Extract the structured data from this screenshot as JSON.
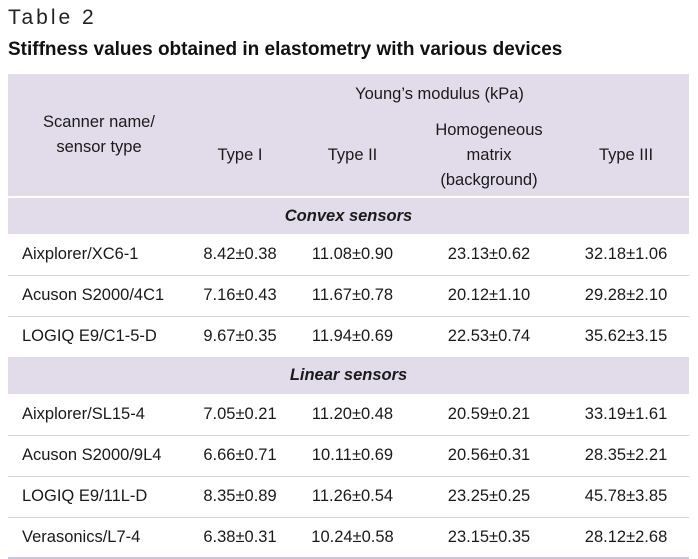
{
  "table_label": "Table 2",
  "caption": "Stiffness values obtained in elastometry with various devices",
  "header": {
    "first_col_line1": "Scanner name/",
    "first_col_line2": "sensor type",
    "group": "Young’s modulus (kPa)",
    "columns": [
      {
        "line1": "Type I"
      },
      {
        "line1": "Type II"
      },
      {
        "line1": "Homogeneous",
        "line2": "matrix",
        "line3": "(background)"
      },
      {
        "line1": "Type III"
      }
    ]
  },
  "groups": [
    {
      "title": "Convex sensors",
      "rows": [
        {
          "name": "Aixplorer/XC6-1",
          "values": [
            "8.42±0.38",
            "11.08±0.90",
            "23.13±0.62",
            "32.18±1.06"
          ]
        },
        {
          "name": "Acuson S2000/4C1",
          "values": [
            "7.16±0.43",
            "11.67±0.78",
            "20.12±1.10",
            "29.28±2.10"
          ]
        },
        {
          "name": "LOGIQ E9/C1-5-D",
          "values": [
            "9.67±0.35",
            "11.94±0.69",
            "22.53±0.74",
            "35.62±3.15"
          ]
        }
      ]
    },
    {
      "title": "Linear sensors",
      "rows": [
        {
          "name": "Aixplorer/SL15-4",
          "values": [
            "7.05±0.21",
            "11.20±0.48",
            "20.59±0.21",
            "33.19±1.61"
          ]
        },
        {
          "name": "Acuson S2000/9L4",
          "values": [
            "6.66±0.71",
            "10.11±0.69",
            "20.56±0.31",
            "28.35±2.21"
          ]
        },
        {
          "name": "LOGIQ E9/11L-D",
          "values": [
            "8.35±0.89",
            "11.26±0.54",
            "23.25±0.25",
            "45.78±3.85"
          ]
        },
        {
          "name": "Verasonics/L7-4",
          "values": [
            "6.38±0.31",
            "10.24±0.58",
            "23.15±0.35",
            "28.12±2.68"
          ]
        }
      ]
    }
  ],
  "colors": {
    "header_background": "#e2dcea",
    "separator": "#d7d0df"
  }
}
